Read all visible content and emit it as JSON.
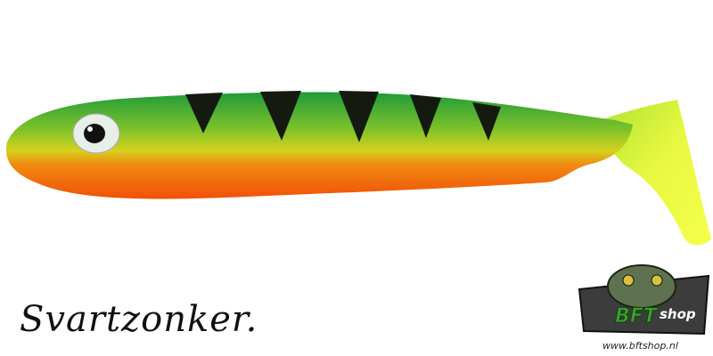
{
  "brand": "Svartzonker.",
  "logo": {
    "name": "BFT",
    "suffix": "shop",
    "url": "www.bftshop.nl"
  }
}
